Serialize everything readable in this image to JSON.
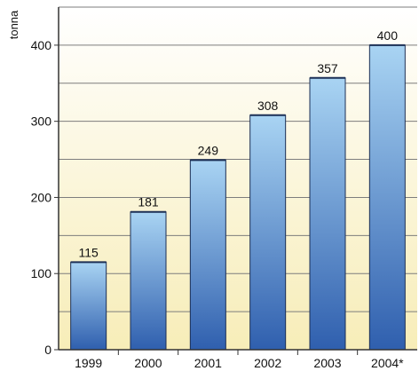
{
  "chart_data": {
    "type": "bar",
    "title": "",
    "xlabel": "",
    "ylabel": "tonna",
    "categories": [
      "1999",
      "2000",
      "2001",
      "2002",
      "2003",
      "2004*"
    ],
    "values": [
      115,
      181,
      249,
      308,
      357,
      400
    ],
    "data_labels": [
      "115",
      "181",
      "249",
      "308",
      "357",
      "400"
    ],
    "ylim": [
      0,
      450
    ],
    "yticks": [
      0,
      100,
      200,
      300,
      400
    ],
    "ytick_labels": [
      "0",
      "100",
      "200",
      "300",
      "400"
    ],
    "grid": true,
    "grid_step": 50,
    "legend": "none",
    "colors": {
      "bar_top": "#a9d4f3",
      "bar_bottom": "#2f5fae",
      "bar_edge": "#1c2f55",
      "plot_bg_top": "#ffffff",
      "plot_bg_bottom": "#f7edb8",
      "gridline": "#7d7d7d",
      "axis": "#333333"
    }
  }
}
